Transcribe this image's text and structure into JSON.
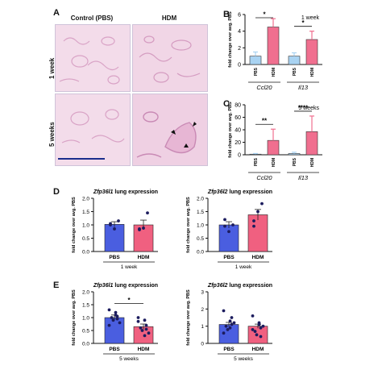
{
  "panels": {
    "A": "A",
    "B": "B",
    "C": "C",
    "D": "D",
    "E": "E"
  },
  "panel_a": {
    "col_headers": [
      "Control (PBS)",
      "HDM"
    ],
    "row_labels": [
      "1 week",
      "5 weeks"
    ],
    "colors": {
      "tissue": "#e6b8d3",
      "tissue_dark": "#c98ab5",
      "background": "#f7eef6",
      "scale_bar": "#1b2e8c"
    }
  },
  "chart_data": [
    {
      "id": "B",
      "type": "bar",
      "annotation": "1 week",
      "ylabel": "fold change over avg. PBS",
      "ylim": [
        0,
        6
      ],
      "yticks": [
        "0",
        "2",
        "4",
        "6"
      ],
      "groups": [
        {
          "gene": "Ccl20",
          "categories": [
            "PBS",
            "HDM"
          ],
          "values": [
            1.0,
            4.5
          ],
          "errors": [
            0.5,
            1.0
          ],
          "sig": "*"
        },
        {
          "gene": "Il13",
          "categories": [
            "PBS",
            "HDM"
          ],
          "values": [
            1.0,
            3.0
          ],
          "errors": [
            0.4,
            1.0
          ],
          "sig": "*"
        }
      ],
      "colors": {
        "PBS": "#a9d3f2",
        "HDM": "#f06f8f"
      }
    },
    {
      "id": "C",
      "type": "bar",
      "annotation": "5 weeks",
      "ylabel": "fold change over avg. PBS",
      "ylim": [
        0,
        80
      ],
      "yticks": [
        "0",
        "20",
        "40",
        "60",
        "80"
      ],
      "groups": [
        {
          "gene": "Ccl20",
          "categories": [
            "PBS",
            "HDM"
          ],
          "values": [
            1,
            23
          ],
          "errors": [
            1,
            18
          ],
          "sig": "**"
        },
        {
          "gene": "Il13",
          "categories": [
            "PBS",
            "HDM"
          ],
          "values": [
            2,
            37
          ],
          "errors": [
            2,
            25
          ],
          "sig": "****"
        }
      ],
      "colors": {
        "PBS": "#a9d3f2",
        "HDM": "#f06f8f"
      }
    },
    {
      "id": "D1",
      "type": "bar",
      "title_gene": "Zfp36l1",
      "title_rest": " lung expression",
      "ylabel": "fold change over avg. PBS",
      "xlabel": "1 week",
      "ylim": [
        0,
        2.0
      ],
      "yticks": [
        "0.0",
        "0.5",
        "1.0",
        "1.5",
        "2.0"
      ],
      "categories": [
        "PBS",
        "HDM"
      ],
      "values": [
        1.02,
        1.0
      ],
      "errors": [
        0.1,
        0.18
      ],
      "points": [
        [
          1.05,
          0.85,
          1.15,
          1.0
        ],
        [
          0.85,
          0.88,
          1.45,
          0.82
        ]
      ],
      "colors": {
        "PBS": "#4a5ee0",
        "HDM": "#f06080"
      }
    },
    {
      "id": "D2",
      "type": "bar",
      "title_gene": "Zfp36l2",
      "title_rest": " lung expression",
      "ylabel": "fold change over avg. PBS",
      "xlabel": "1 week",
      "ylim": [
        0,
        2.0
      ],
      "yticks": [
        "0.0",
        "0.5",
        "1.0",
        "1.5",
        "2.0"
      ],
      "categories": [
        "PBS",
        "HDM"
      ],
      "values": [
        1.0,
        1.38
      ],
      "errors": [
        0.12,
        0.2
      ],
      "points": [
        [
          1.2,
          0.75,
          1.0,
          0.95
        ],
        [
          1.15,
          1.5,
          1.8,
          0.95
        ]
      ],
      "colors": {
        "PBS": "#4a5ee0",
        "HDM": "#f06080"
      }
    },
    {
      "id": "E1",
      "type": "bar",
      "title_gene": "Zfp36l1",
      "title_rest": " lung expression",
      "ylabel": "fold change over avg. PBS",
      "xlabel": "5 weeks",
      "ylim": [
        0,
        2.0
      ],
      "yticks": [
        "0.0",
        "0.5",
        "1.0",
        "1.5",
        "2.0"
      ],
      "categories": [
        "PBS",
        "HDM"
      ],
      "values": [
        1.0,
        0.65
      ],
      "errors": [
        0.1,
        0.1
      ],
      "points": [
        [
          1.3,
          1.1,
          1.05,
          1.0,
          0.9,
          0.8,
          0.7,
          1.2,
          0.95
        ],
        [
          1.0,
          0.9,
          0.7,
          0.6,
          0.5,
          0.4,
          0.85,
          0.3,
          0.55
        ]
      ],
      "sig": "*",
      "colors": {
        "PBS": "#4a5ee0",
        "HDM": "#f06080"
      }
    },
    {
      "id": "E2",
      "type": "bar",
      "title_gene": "Zfp36l2",
      "title_rest": " lung expression",
      "ylabel": "fold change over avg. PBS",
      "xlabel": "5 weeks",
      "ylim": [
        0,
        3
      ],
      "yticks": [
        "0",
        "1",
        "2",
        "3"
      ],
      "categories": [
        "PBS",
        "HDM"
      ],
      "values": [
        1.1,
        1.0
      ],
      "errors": [
        0.12,
        0.12
      ],
      "points": [
        [
          1.9,
          1.3,
          1.1,
          1.0,
          0.8,
          1.2,
          0.6,
          0.9,
          1.5
        ],
        [
          1.6,
          1.2,
          0.9,
          0.7,
          0.5,
          1.0,
          0.8,
          1.1,
          0.4
        ]
      ],
      "colors": {
        "PBS": "#4a5ee0",
        "HDM": "#f06080"
      }
    }
  ]
}
